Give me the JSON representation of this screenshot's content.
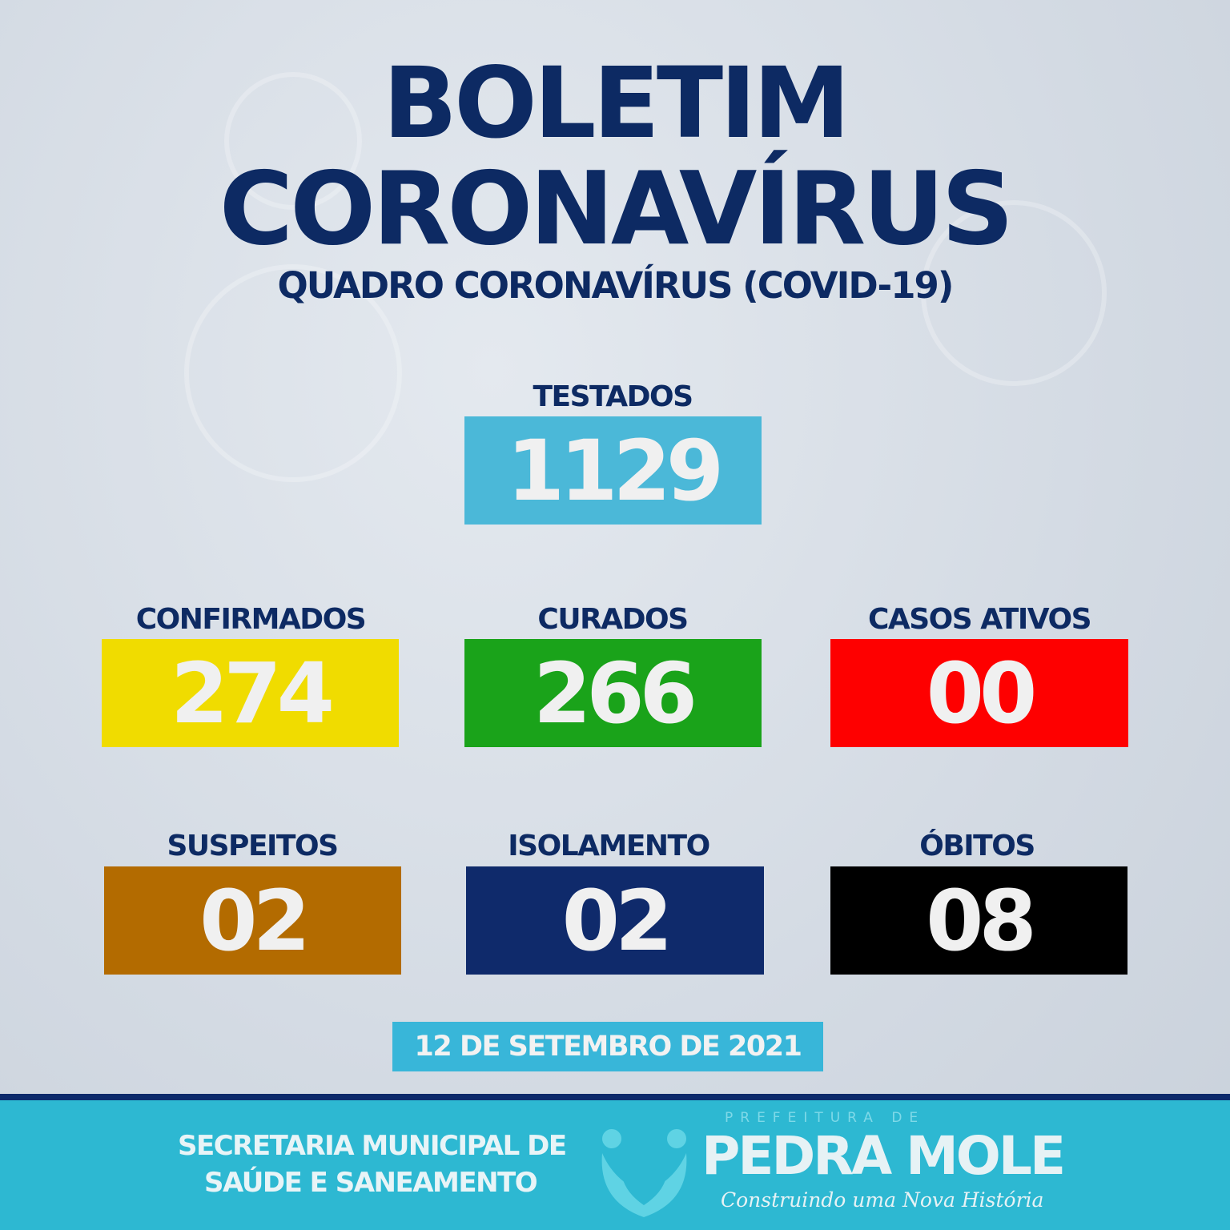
{
  "header": {
    "title_line1": "BOLETIM",
    "title_line2": "CORONAVÍRUS",
    "subtitle": "QUADRO CORONAVÍRUS (COVID-19)"
  },
  "stats": [
    {
      "label": "TESTADOS",
      "value": "1129",
      "color": "#4bb8d8"
    },
    {
      "label": "CONFIRMADOS",
      "value": "274",
      "color": "#f0dc00"
    },
    {
      "label": "CURADOS",
      "value": "266",
      "color": "#1aa31a"
    },
    {
      "label": "CASOS ATIVOS",
      "value": "00",
      "color": "#fe0000"
    },
    {
      "label": "SUSPEITOS",
      "value": "02",
      "color": "#b36b00"
    },
    {
      "label": "ISOLAMENTO",
      "value": "02",
      "color": "#0f2a6b"
    },
    {
      "label": "ÓBITOS",
      "value": "08",
      "color": "#000000"
    }
  ],
  "date": "12 DE SETEMBRO DE 2021",
  "footer": {
    "secretaria_line1": "SECRETARIA MUNICIPAL DE",
    "secretaria_line2": "SAÚDE E SANEAMENTO",
    "logo_pre": "PREFEITURA DE",
    "logo_name": "PEDRA MOLE",
    "logo_slogan": "Construindo uma Nova História",
    "bg_color": "#2db8d2",
    "line_color": "#0c2a6b"
  }
}
